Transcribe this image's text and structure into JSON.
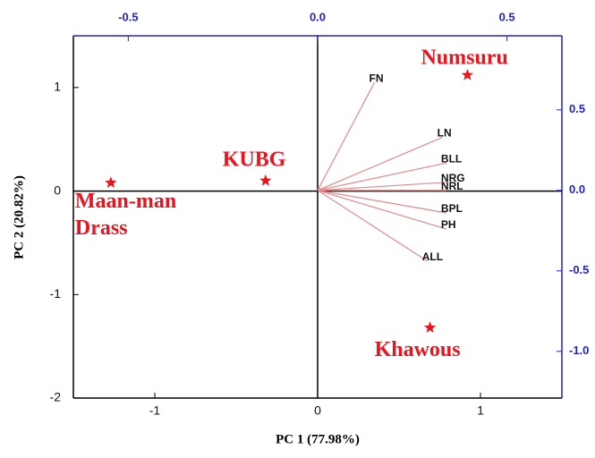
{
  "chart_data": {
    "type": "biplot",
    "x_label": "PC 1 (77.98%)",
    "y_label": "PC 2 (20.82%)",
    "xlim": [
      -1.5,
      1.5
    ],
    "ylim": [
      -2,
      1.5
    ],
    "xticks": [
      -1,
      0,
      1
    ],
    "yticks": [
      -2,
      -1,
      0,
      1
    ],
    "x2lim": [
      -0.645,
      0.645
    ],
    "y2lim": [
      -1.29,
      0.96
    ],
    "x2ticks": [
      -0.5,
      {
        "value": 0,
        "label": "0.0"
      },
      0.5
    ],
    "y2ticks": [
      0.5,
      {
        "value": 0,
        "label": "0.0"
      },
      -0.5,
      {
        "value": -1,
        "label": "-1.0"
      }
    ],
    "scores": {
      "color": "#e8141e",
      "points": [
        {
          "label": [
            "Numsuru"
          ],
          "x": 0.92,
          "y": 1.12
        },
        {
          "label": [
            "KUBG"
          ],
          "x": -0.32,
          "y": 0.1
        },
        {
          "label": [
            "Maan-man",
            "Drass"
          ],
          "x": -1.27,
          "y": 0.08
        },
        {
          "label": [
            "Khawous"
          ],
          "x": 0.69,
          "y": -1.32
        }
      ]
    },
    "loadings": {
      "color": "#e08a8a",
      "vectors": [
        {
          "label": "FN",
          "x": 0.15,
          "y": 0.67
        },
        {
          "label": "LN",
          "x": 0.33,
          "y": 0.33
        },
        {
          "label": "BLL",
          "x": 0.34,
          "y": 0.17
        },
        {
          "label": "NRG",
          "x": 0.34,
          "y": 0.05
        },
        {
          "label": "NRL",
          "x": 0.34,
          "y": 0.0
        },
        {
          "label": "BPL",
          "x": 0.34,
          "y": -0.14
        },
        {
          "label": "PH",
          "x": 0.34,
          "y": -0.24
        },
        {
          "label": "ALL",
          "x": 0.29,
          "y": -0.44
        }
      ]
    }
  }
}
